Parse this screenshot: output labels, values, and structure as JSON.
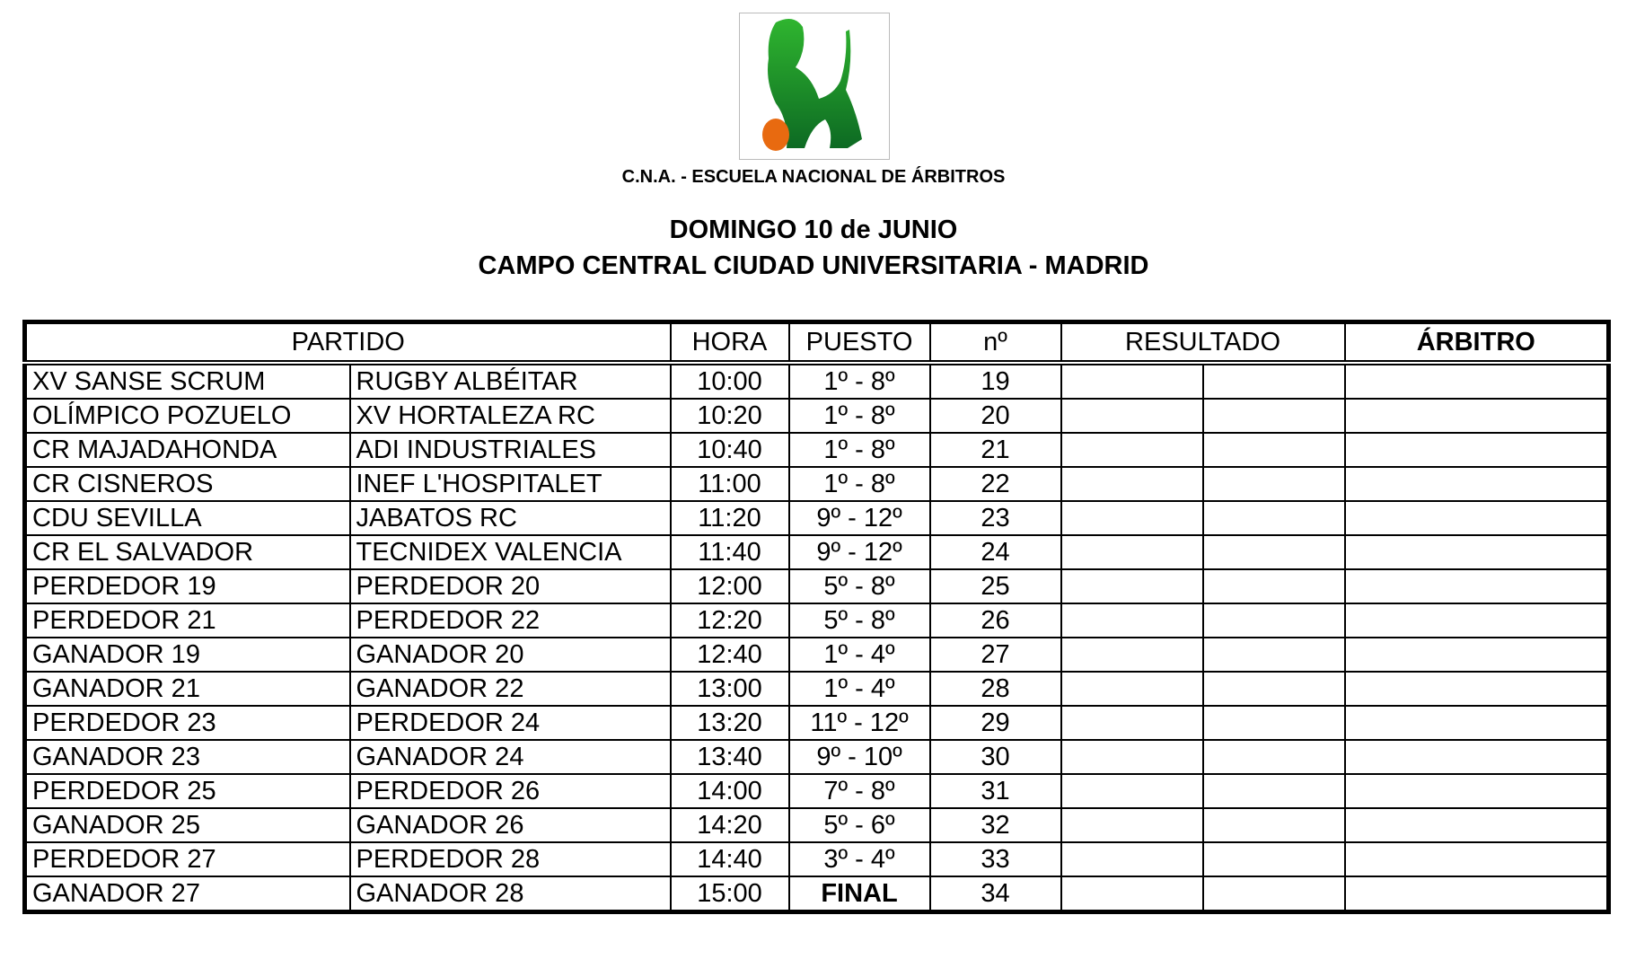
{
  "header": {
    "logo_alt": "C.N.A. lion logo",
    "organization": "C.N.A. - ESCUELA NACIONAL DE ÁRBITROS",
    "date": "DOMINGO 10 de JUNIO",
    "venue": "CAMPO CENTRAL CIUDAD UNIVERSITARIA - MADRID"
  },
  "table": {
    "columns": {
      "partido": "PARTIDO",
      "hora": "HORA",
      "puesto": "PUESTO",
      "numero": "nº",
      "resultado": "RESULTADO",
      "arbitro": "ÁRBITRO"
    },
    "rows": [
      {
        "home": "XV SANSE SCRUM",
        "away": "RUGBY ALBÉITAR",
        "hora": "10:00",
        "puesto": "1º - 8º",
        "n": "19"
      },
      {
        "home": "OLÍMPICO POZUELO",
        "away": "XV HORTALEZA RC",
        "hora": "10:20",
        "puesto": "1º - 8º",
        "n": "20"
      },
      {
        "home": "CR MAJADAHONDA",
        "away": "ADI INDUSTRIALES",
        "hora": "10:40",
        "puesto": "1º - 8º",
        "n": "21"
      },
      {
        "home": "CR CISNEROS",
        "away": "INEF L'HOSPITALET",
        "hora": "11:00",
        "puesto": "1º - 8º",
        "n": "22"
      },
      {
        "home": "CDU SEVILLA",
        "away": "JABATOS RC",
        "hora": "11:20",
        "puesto": "9º - 12º",
        "n": "23"
      },
      {
        "home": "CR EL SALVADOR",
        "away": "TECNIDEX VALENCIA",
        "hora": "11:40",
        "puesto": "9º - 12º",
        "n": "24"
      },
      {
        "home": "PERDEDOR 19",
        "away": "PERDEDOR 20",
        "hora": "12:00",
        "puesto": "5º - 8º",
        "n": "25"
      },
      {
        "home": "PERDEDOR 21",
        "away": "PERDEDOR 22",
        "hora": "12:20",
        "puesto": "5º - 8º",
        "n": "26"
      },
      {
        "home": "GANADOR 19",
        "away": "GANADOR 20",
        "hora": "12:40",
        "puesto": "1º - 4º",
        "n": "27"
      },
      {
        "home": "GANADOR 21",
        "away": "GANADOR 22",
        "hora": "13:00",
        "puesto": "1º - 4º",
        "n": "28"
      },
      {
        "home": "PERDEDOR 23",
        "away": "PERDEDOR 24",
        "hora": "13:20",
        "puesto": "11º - 12º",
        "n": "29"
      },
      {
        "home": "GANADOR 23",
        "away": "GANADOR 24",
        "hora": "13:40",
        "puesto": "9º - 10º",
        "n": "30"
      },
      {
        "home": "PERDEDOR 25",
        "away": "PERDEDOR 26",
        "hora": "14:00",
        "puesto": "7º - 8º",
        "n": "31"
      },
      {
        "home": "GANADOR 25",
        "away": "GANADOR 26",
        "hora": "14:20",
        "puesto": "5º - 6º",
        "n": "32"
      },
      {
        "home": "PERDEDOR 27",
        "away": "PERDEDOR 28",
        "hora": "14:40",
        "puesto": "3º - 4º",
        "n": "33"
      },
      {
        "home": "GANADOR 27",
        "away": "GANADOR 28",
        "hora": "15:00",
        "puesto": "FINAL",
        "n": "34"
      }
    ]
  }
}
